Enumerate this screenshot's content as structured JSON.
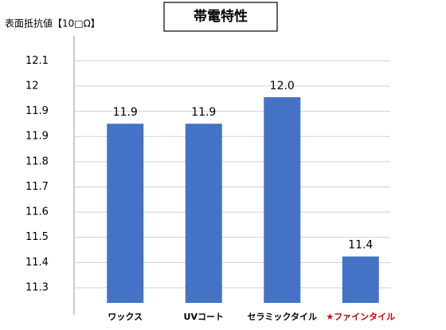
{
  "chart_data": {
    "type": "bar",
    "title": "帯電特性",
    "y_label": "表面抵抗値【10□Ω】",
    "categories": [
      "ワックス",
      "UVコート",
      "セラミックタイル",
      "★ファインタイル"
    ],
    "values": [
      11.9,
      11.9,
      12.0,
      11.4
    ],
    "value_labels": [
      "11.9",
      "11.9",
      "12.0",
      "11.4"
    ],
    "color": "#4472c4",
    "category_label_colors": [
      "#000000",
      "#000000",
      "#000000",
      "#d00000"
    ],
    "ylim": [
      11.225,
      12.231
    ],
    "yticks": [
      {
        "value": 11.282,
        "label": "11.3"
      },
      {
        "value": 11.377,
        "label": "11.4"
      },
      {
        "value": 11.472,
        "label": "11.5"
      },
      {
        "value": 11.567,
        "label": "11.6"
      },
      {
        "value": 11.662,
        "label": "11.7"
      },
      {
        "value": 11.757,
        "label": "11.8"
      },
      {
        "value": 11.852,
        "label": "11.9"
      },
      {
        "value": 11.947,
        "label": "11.9"
      },
      {
        "value": 12.042,
        "label": "12"
      },
      {
        "value": 12.137,
        "label": "12.1"
      }
    ],
    "grid": true
  }
}
